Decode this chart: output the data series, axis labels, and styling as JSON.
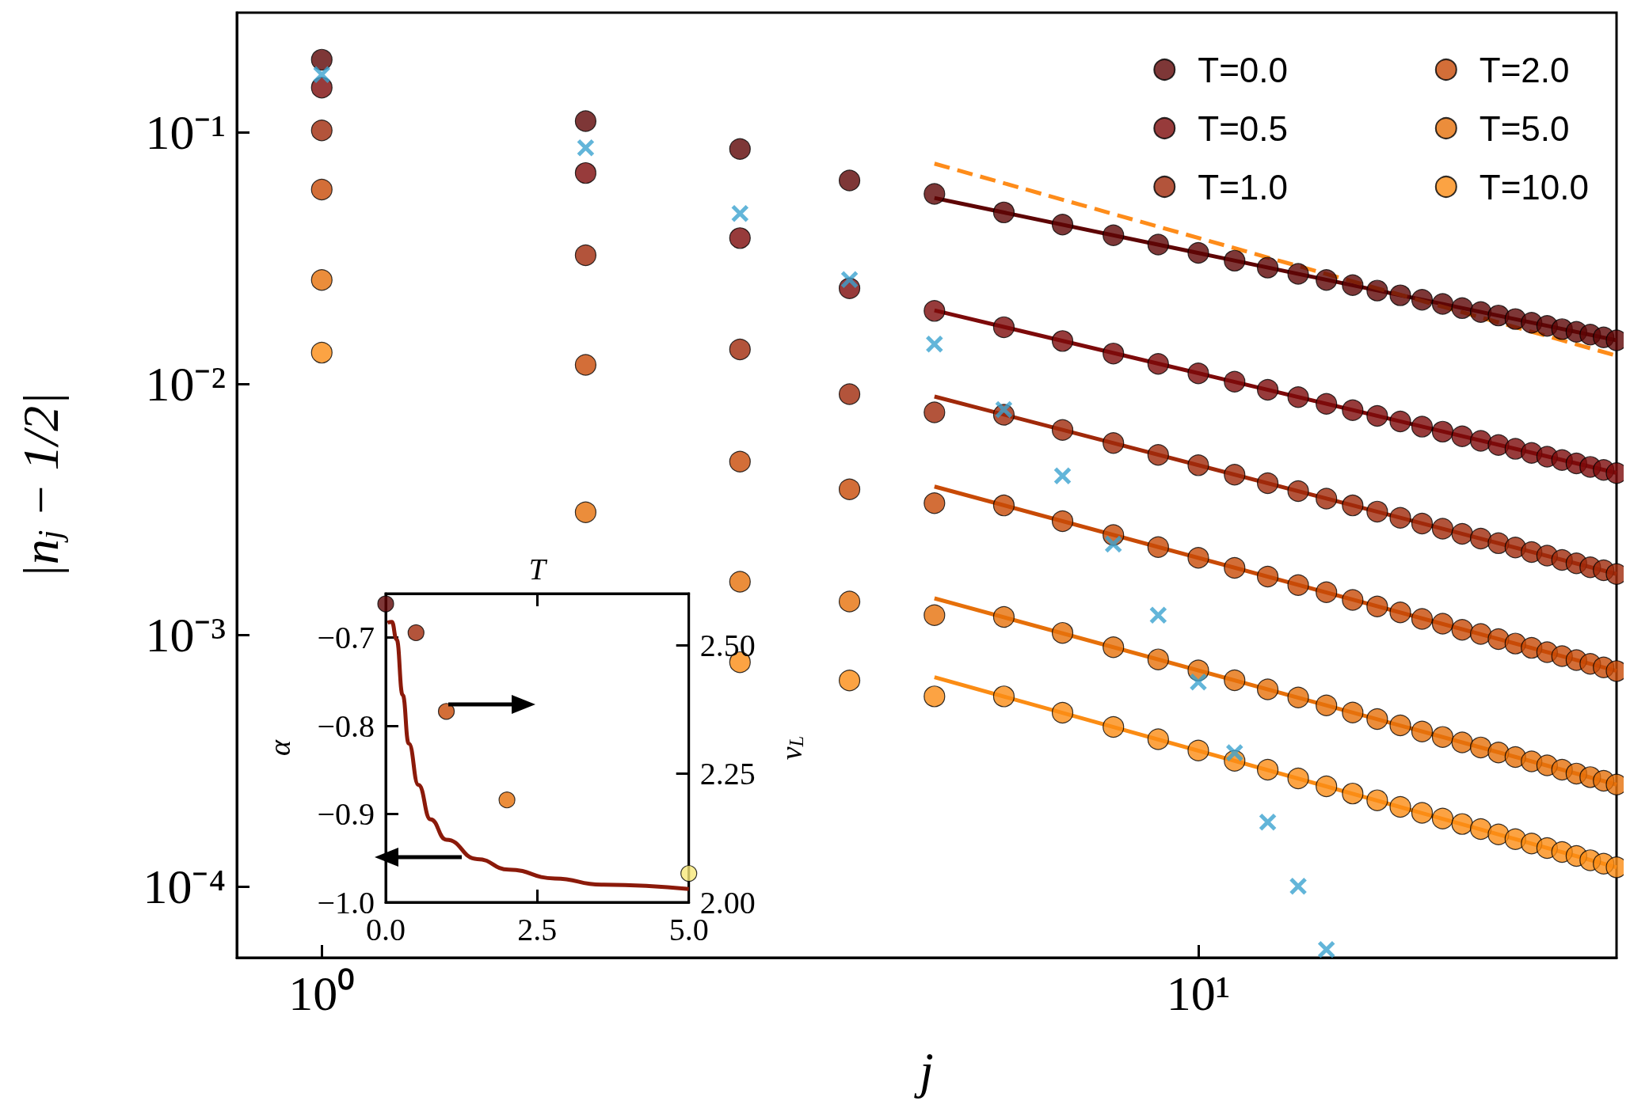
{
  "chart_data": [
    {
      "type": "scatter",
      "xlabel": "j",
      "ylabel": "|n$_{j}$ − 1/2|",
      "log": "xy",
      "xlim": [
        0.8,
        30
      ],
      "ylim": [
        5.2e-05,
        0.3
      ],
      "xticks": [
        {
          "value": 1,
          "label": "10⁰"
        },
        {
          "value": 10,
          "label": "10¹"
        }
      ],
      "yticks": [
        {
          "value": 0.0001,
          "label": "10⁻⁴"
        },
        {
          "value": 0.001,
          "label": "10⁻³"
        },
        {
          "value": 0.01,
          "label": "10⁻²"
        },
        {
          "value": 0.1,
          "label": "10⁻¹"
        }
      ],
      "legend": "top right",
      "marker": "circle",
      "x": [
        1,
        2,
        3,
        4,
        5,
        6,
        7,
        8,
        9,
        10,
        11,
        12,
        13,
        14,
        15,
        16,
        17,
        18,
        19,
        20,
        21,
        22,
        23,
        24,
        25,
        26,
        27,
        28,
        29,
        30
      ],
      "series": [
        {
          "name": "T=0.0",
          "color": "#5e0505",
          "values": [
            0.195,
            0.111,
            0.086,
            0.0645,
            0.057,
            0.0481,
            0.043,
            0.039,
            0.0358,
            0.0332,
            0.0309,
            0.029,
            0.0274,
            0.0259,
            0.0247,
            0.0235,
            0.0225,
            0.0216,
            0.0208,
            0.02,
            0.0193,
            0.0187,
            0.0181,
            0.0175,
            0.017,
            0.0165,
            0.0161,
            0.0157,
            0.0153,
            0.0149
          ]
        },
        {
          "name": "T=0.5",
          "color": "#7d0a0a",
          "values": [
            0.151,
            0.069,
            0.038,
            0.024,
            0.0195,
            0.0168,
            0.0148,
            0.0132,
            0.012,
            0.011,
            0.0102,
            0.00946,
            0.00885,
            0.00832,
            0.00785,
            0.00745,
            0.00708,
            0.00675,
            0.00645,
            0.00618,
            0.00593,
            0.00571,
            0.00551,
            0.00531,
            0.00513,
            0.00497,
            0.00482,
            0.00467,
            0.00454,
            0.00441
          ]
        },
        {
          "name": "T=1.0",
          "color": "#a0290a",
          "values": [
            0.102,
            0.0325,
            0.0137,
            0.0091,
            0.0077,
            0.00753,
            0.00655,
            0.00581,
            0.00521,
            0.00474,
            0.00435,
            0.00402,
            0.00374,
            0.00349,
            0.00328,
            0.0031,
            0.00293,
            0.00278,
            0.00265,
            0.00253,
            0.00242,
            0.00232,
            0.00223,
            0.00214,
            0.00207,
            0.00199,
            0.00193,
            0.00186,
            0.00181,
            0.00175
          ]
        },
        {
          "name": "T=2.0",
          "color": "#c84a06",
          "values": [
            0.0593,
            0.0119,
            0.0049,
            0.0038,
            0.00335,
            0.00328,
            0.00284,
            0.0025,
            0.00224,
            0.00203,
            0.00185,
            0.00171,
            0.00158,
            0.00148,
            0.00138,
            0.0013,
            0.00123,
            0.00116,
            0.00111,
            0.00105,
            0.00101,
            0.000964,
            0.000925,
            0.000889,
            0.000855,
            0.000824,
            0.000795,
            0.000768,
            0.000743,
            0.000719
          ]
        },
        {
          "name": "T=5.0",
          "color": "#e6700a",
          "values": [
            0.0259,
            0.00308,
            0.00163,
            0.00136,
            0.0012,
            0.00118,
            0.00102,
            0.000895,
            0.0008,
            0.000723,
            0.000661,
            0.000608,
            0.000564,
            0.000525,
            0.000492,
            0.000463,
            0.000437,
            0.000413,
            0.000393,
            0.000374,
            0.000357,
            0.000341,
            0.000327,
            0.000314,
            0.000303,
            0.000291,
            0.000281,
            0.000272,
            0.000263,
            0.000254
          ]
        },
        {
          "name": "T=10.0",
          "color": "#fb8c14",
          "values": [
            0.0133,
            null,
            0.00078,
            0.00066,
            0.00057,
            0.00057,
            0.000491,
            0.000431,
            0.000385,
            0.000347,
            0.000316,
            0.000291,
            0.000269,
            0.00025,
            0.000234,
            0.00022,
            0.000207,
            0.000196,
            0.000186,
            0.000177,
            0.000169,
            0.000161,
            0.000154,
            0.000148,
            0.000142,
            0.000137,
            0.000132,
            0.000127,
            0.000123,
            0.000119
          ]
        },
        {
          "type": "line",
          "marker": "none",
          "color": "#5e0505",
          "x": [
            5,
            30
          ],
          "values": [
            0.0549,
            0.0149
          ]
        },
        {
          "type": "line",
          "marker": "none",
          "color": "#7d0a0a",
          "x": [
            5,
            30
          ],
          "values": [
            0.0196,
            0.00442
          ]
        },
        {
          "type": "line",
          "marker": "none",
          "color": "#a0290a",
          "x": [
            5,
            30
          ],
          "values": [
            0.0089,
            0.00175
          ]
        },
        {
          "type": "line",
          "marker": "none",
          "color": "#c84a06",
          "x": [
            5,
            30
          ],
          "values": [
            0.0039,
            0.00072
          ]
        },
        {
          "type": "line",
          "marker": "none",
          "color": "#e6700a",
          "x": [
            5,
            30
          ],
          "values": [
            0.0014,
            0.000254
          ]
        },
        {
          "type": "line",
          "marker": "none",
          "color": "#fb8c14",
          "x": [
            5,
            30
          ],
          "values": [
            0.00068,
            0.000119
          ]
        },
        {
          "type": "line",
          "marker": "none",
          "line_style": "dashed",
          "color": "#fe8c1a",
          "x": [
            5,
            30
          ],
          "values": [
            0.0752,
            0.01294
          ]
        },
        {
          "type": "scatter",
          "marker": "cross",
          "color": "#3ba3cf",
          "x": [
            1,
            2,
            3,
            4,
            5,
            6,
            7,
            8,
            9,
            10,
            11,
            12,
            13,
            14
          ],
          "values": [
            0.17,
            0.087,
            0.0476,
            0.026,
            0.0144,
            0.0079,
            0.0043,
            0.0023,
            0.0012,
            0.00065,
            0.00034,
            0.00018,
            0.0001,
            5.6e-05
          ]
        }
      ]
    },
    {
      "type": "line",
      "xlabel": "T",
      "ylabel": "α",
      "y2label": "v$_{L}$",
      "xlim": [
        0,
        5
      ],
      "ylim": [
        -1.0,
        -0.65
      ],
      "y2lim": [
        2.0,
        2.6
      ],
      "xticks": [
        {
          "value": 0,
          "label": "0.0"
        },
        {
          "value": 2.5,
          "label": "2.5"
        },
        {
          "value": 5,
          "label": "5.0"
        }
      ],
      "yticks": [
        {
          "value": -1.0,
          "label": "−1.0"
        },
        {
          "value": -0.9,
          "label": "−0.9"
        },
        {
          "value": -0.8,
          "label": "−0.8"
        },
        {
          "value": -0.7,
          "label": "−0.7"
        }
      ],
      "y2ticks": [
        {
          "value": 2.0,
          "label": "2.00"
        },
        {
          "value": 2.25,
          "label": "2.25"
        },
        {
          "value": 2.5,
          "label": "2.50"
        }
      ],
      "series": [
        {
          "marker": "none",
          "color": "#8b1a0a",
          "x": [
            0.03,
            0.1,
            0.18,
            0.28,
            0.38,
            0.54,
            0.74,
            1.0,
            1.51,
            2.03,
            2.79,
            3.56,
            5.0
          ],
          "values": [
            -0.683,
            -0.682,
            -0.702,
            -0.765,
            -0.82,
            -0.867,
            -0.906,
            -0.929,
            -0.951,
            -0.963,
            -0.973,
            -0.98,
            -0.985
          ]
        },
        {
          "type": "scatter",
          "marker": "circle",
          "axis": "y2",
          "x": [
            0,
            0.5,
            1,
            2,
            5
          ],
          "values": [
            2.58,
            2.524,
            2.371,
            2.199,
            2.056
          ],
          "colors": [
            "#5e0505",
            "#a0290a",
            "#c84a06",
            "#e6700a",
            "#f7e87a"
          ]
        }
      ]
    }
  ]
}
